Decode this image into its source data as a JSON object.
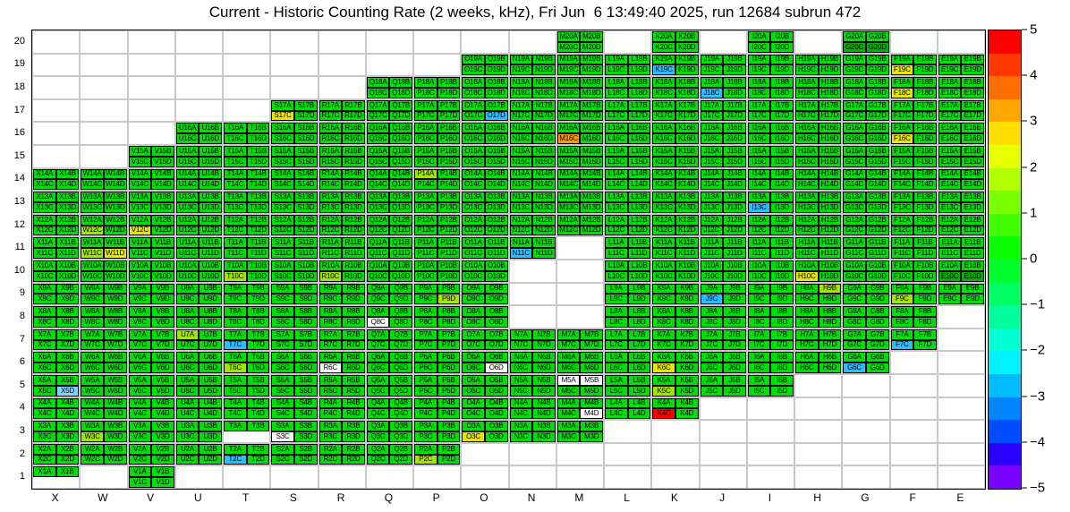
{
  "title": "Current - Historic Counting Rate (2 weeks, kHz), Fri Jun  6 13:49:40 2025, run 12684 subrun 472",
  "run_info": {
    "run": "12684",
    "subrun": "472",
    "timestamp": "Fri Jun 6 13:49:40 2025",
    "window": "2 weeks",
    "units": "kHz"
  },
  "axes": {
    "x_labels": [
      "X",
      "W",
      "V",
      "U",
      "T",
      "S",
      "R",
      "Q",
      "P",
      "O",
      "N",
      "M",
      "L",
      "K",
      "J",
      "I",
      "H",
      "G",
      "F",
      "E"
    ],
    "y_labels": [
      20,
      19,
      18,
      17,
      16,
      15,
      14,
      13,
      12,
      11,
      10,
      9,
      8,
      7,
      6,
      5,
      4,
      3,
      2,
      1
    ]
  },
  "colorbar": {
    "tick_labels": [
      "5",
      "4",
      "3",
      "2",
      "1",
      "0",
      "−1",
      "−2",
      "−3",
      "−4",
      "−5"
    ],
    "segment_colors": [
      "#ff0000",
      "#ff3800",
      "#ff6f00",
      "#ffa700",
      "#ffde00",
      "#e8ff00",
      "#b1ff00",
      "#79ff00",
      "#42ff00",
      "#0bff00",
      "#00ff2d",
      "#00ff64",
      "#00ff9c",
      "#00ffd3",
      "#00f4ff",
      "#00bcff",
      "#0085ff",
      "#004dff",
      "#2a00ff",
      "#7a00ff"
    ]
  },
  "grid_style": {
    "default_color": "#00de07",
    "no_data_color": "#ffffff",
    "special_colors": {
      "K4C": "#ff0000",
      "M16C": "#ff9900",
      "S17C": "#e6e600",
      "F18C": "#e6e600",
      "F19C": "#e6e600",
      "F16C": "#e6e600",
      "W11D": "#e6e600",
      "K6C": "#e6e600",
      "O3C": "#e6e600",
      "V12C": "#e6e600",
      "H10C": "#e6e600",
      "T6C": "#a2e500",
      "W3C": "#a2e500",
      "P2C": "#a2e500",
      "U7A": "#a2e500",
      "P9D": "#a2e500",
      "H9B": "#a2e500",
      "F9C": "#a2e500",
      "P14A": "#a2e500",
      "W12C": "#a2e500",
      "W11C": "#a2e500",
      "K5C": "#a2e500",
      "T10C": "#a2e500",
      "R10C": "#a2e500",
      "O17D": "#2bbdff",
      "J18C": "#2bbdff",
      "K19C": "#2bbdff",
      "N11C": "#2bbdff",
      "T7C": "#2bbdff",
      "T2C": "#2bbdff",
      "J9C": "#2bbdff",
      "G6C": "#2bbdff",
      "F7C": "#2bbdff",
      "I13C": "#2bbdff",
      "X5D": "#7dd4ff",
      "G20C": "#00b300",
      "G20D": "#00b300",
      "E10C": "#00b300",
      "E10D": "#00b300"
    }
  },
  "chart_data": {
    "type": "heatmap",
    "title": "Current - Historic Counting Rate (2 weeks, kHz), Fri Jun  6 13:49:40 2025, run 12684 subrun 472",
    "x_labels": [
      "X",
      "W",
      "V",
      "U",
      "T",
      "S",
      "R",
      "Q",
      "P",
      "O",
      "N",
      "M",
      "L",
      "K",
      "J",
      "I",
      "H",
      "G",
      "F",
      "E"
    ],
    "y_labels": [
      20,
      19,
      18,
      17,
      16,
      15,
      14,
      13,
      12,
      11,
      10,
      9,
      8,
      7,
      6,
      5,
      4,
      3,
      2,
      1
    ],
    "subcell_layout": "Each (column,row) module holds four labeled subcells: A top-left, B top-right, C bottom-left, D bottom-right; subcell label = column + row + letter",
    "value_range": [
      -5,
      5
    ],
    "default_value": 0,
    "legend_position": "right-colorbar",
    "colorbar_ticks": [
      5,
      4,
      3,
      2,
      1,
      0,
      -1,
      -2,
      -3,
      -4,
      -5
    ],
    "palette": "rainbow",
    "notable_values": {
      "K4C": 5,
      "M16C": 3,
      "S17C": 2,
      "F18C": 2,
      "F19C": 2,
      "F16C": 2,
      "W11D": 2,
      "K6C": 2,
      "O3C": 2,
      "V12C": 2,
      "H10C": 2,
      "T6C": 1,
      "W3C": 1,
      "P2C": 1,
      "U7A": 1,
      "P9D": 1,
      "H9B": 1,
      "F9C": 1,
      "P14A": 1,
      "W12C": 1,
      "W11C": 1,
      "K5C": 1,
      "T10C": 1,
      "R10C": 1,
      "O17D": -2,
      "J18C": -2,
      "K19C": -2,
      "N11C": -2,
      "T7C": -2,
      "T2C": -2,
      "J9C": -2,
      "G6C": -2,
      "F7C": -2,
      "I13C": -2,
      "X5D": -1.5,
      "G20C": -0.5,
      "G20D": -0.5,
      "E10C": -0.5,
      "E10D": -0.5
    },
    "no_data_subcells": [
      "M5A",
      "M5B",
      "M4D",
      "R6C",
      "O6D",
      "Q8C",
      "S3C"
    ],
    "module_footprint_by_row": {
      "20": [
        "M",
        "K",
        "I",
        "G"
      ],
      "19": [
        "O",
        "N",
        "M",
        "L",
        "K",
        "J",
        "I",
        "H",
        "G",
        "F",
        "E"
      ],
      "18": [
        "Q",
        "P",
        "O",
        "N",
        "M",
        "L",
        "K",
        "J",
        "I",
        "H",
        "G",
        "F",
        "E"
      ],
      "17": [
        "S",
        "R",
        "Q",
        "P",
        "O",
        "N",
        "M",
        "L",
        "K",
        "J",
        "I",
        "H",
        "G",
        "F",
        "E"
      ],
      "16": [
        "U",
        "T",
        "S",
        "R",
        "Q",
        "P",
        "O",
        "N",
        "M",
        "L",
        "K",
        "J",
        "I",
        "H",
        "G",
        "F",
        "E"
      ],
      "15": [
        "V",
        "U",
        "T",
        "S",
        "R",
        "Q",
        "P",
        "O",
        "N",
        "M",
        "L",
        "K",
        "J",
        "I",
        "H",
        "G",
        "F",
        "E"
      ],
      "14": [
        "X",
        "W",
        "V",
        "U",
        "T",
        "S",
        "R",
        "Q",
        "P",
        "O",
        "N",
        "M",
        "L",
        "K",
        "J",
        "I",
        "H",
        "G",
        "F",
        "E"
      ],
      "13": [
        "X",
        "W",
        "V",
        "U",
        "T",
        "S",
        "R",
        "Q",
        "P",
        "O",
        "N",
        "M",
        "L",
        "K",
        "J",
        "I",
        "H",
        "G",
        "F",
        "E"
      ],
      "12": [
        "X",
        "W",
        "V",
        "U",
        "T",
        "S",
        "R",
        "Q",
        "P",
        "O",
        "N",
        "M",
        "L",
        "K",
        "J",
        "I",
        "H",
        "G",
        "F",
        "E"
      ],
      "11": [
        "X",
        "W",
        "V",
        "U",
        "T",
        "S",
        "R",
        "Q",
        "P",
        "O",
        "N",
        "L",
        "K",
        "J",
        "I",
        "H",
        "G",
        "F",
        "E"
      ],
      "10": [
        "X",
        "W",
        "V",
        "U",
        "T",
        "S",
        "R",
        "Q",
        "P",
        "O",
        "L",
        "K",
        "J",
        "I",
        "H",
        "G",
        "F",
        "E"
      ],
      "9": [
        "X",
        "W",
        "V",
        "U",
        "T",
        "S",
        "R",
        "Q",
        "P",
        "O",
        "L",
        "K",
        "J",
        "I",
        "H",
        "G",
        "F",
        "E"
      ],
      "8": [
        "X",
        "W",
        "V",
        "U",
        "T",
        "S",
        "R",
        "Q",
        "P",
        "O",
        "L",
        "K",
        "J",
        "I",
        "H",
        "G",
        "F"
      ],
      "7": [
        "X",
        "W",
        "V",
        "U",
        "T",
        "S",
        "R",
        "Q",
        "P",
        "O",
        "N",
        "M",
        "L",
        "K",
        "J",
        "I",
        "H",
        "G",
        "F"
      ],
      "6": [
        "X",
        "W",
        "V",
        "U",
        "T",
        "S",
        "R",
        "Q",
        "P",
        "O",
        "N",
        "M",
        "L",
        "K",
        "J",
        "I",
        "H",
        "G"
      ],
      "5": [
        "X",
        "W",
        "V",
        "U",
        "T",
        "S",
        "R",
        "Q",
        "P",
        "O",
        "N",
        "M",
        "L",
        "K",
        "J",
        "I"
      ],
      "4": [
        "X",
        "W",
        "V",
        "U",
        "T",
        "S",
        "R",
        "Q",
        "P",
        "O",
        "N",
        "M",
        "L",
        "K"
      ],
      "3": [
        "X",
        "W",
        "V",
        "U",
        "T:AB",
        "S",
        "R",
        "Q",
        "P",
        "O",
        "N",
        "M"
      ],
      "2": [
        "X",
        "W",
        "V",
        "U",
        "T",
        "S",
        "R",
        "Q",
        "P"
      ],
      "1": [
        "X:AB",
        "V"
      ]
    }
  }
}
